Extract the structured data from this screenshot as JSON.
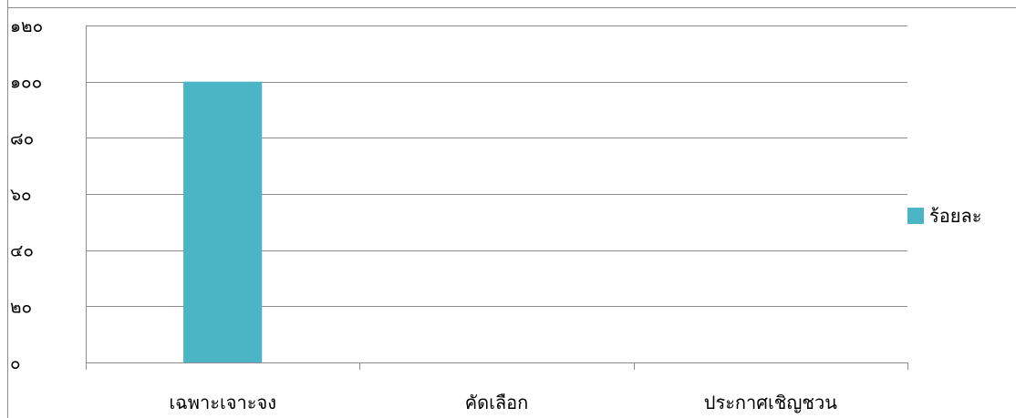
{
  "chart_data": {
    "type": "bar",
    "categories": [
      "เฉพาะเจาะจง",
      "คัดเลือก",
      "ประกาศเชิญชวน"
    ],
    "series": [
      {
        "name": "ร้อยละ",
        "values": [
          100,
          0,
          0
        ],
        "color": "#4bb5c5"
      }
    ],
    "ylim": [
      0,
      120
    ],
    "yticks": [
      0,
      20,
      40,
      60,
      80,
      100,
      120
    ],
    "ytick_labels": [
      "๐",
      "๒๐",
      "๔๐",
      "๖๐",
      "๘๐",
      "๑๐๐",
      "๑๒๐"
    ],
    "grid": true,
    "legend_position": "right",
    "title": "",
    "xlabel": "",
    "ylabel": ""
  }
}
